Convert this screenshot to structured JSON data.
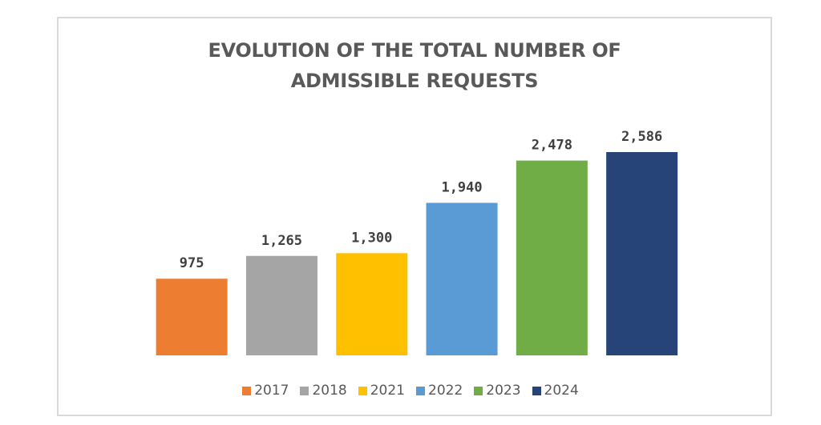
{
  "chart_data": {
    "type": "bar",
    "title": "EVOLUTION OF THE TOTAL NUMBER OF ADMISSIBLE REQUESTS",
    "title_lines": [
      "EVOLUTION OF THE TOTAL NUMBER OF",
      "ADMISSIBLE REQUESTS"
    ],
    "categories": [
      "2017",
      "2018",
      "2021",
      "2022",
      "2023",
      "2024"
    ],
    "values": [
      975,
      1265,
      1300,
      1940,
      2478,
      2586
    ],
    "data_labels": [
      "975",
      "1,265",
      "1,300",
      "1,940",
      "2,478",
      "2,586"
    ],
    "colors": [
      "#ed7d31",
      "#a5a5a5",
      "#ffc000",
      "#5b9bd5",
      "#70ad47",
      "#264478"
    ],
    "xlabel": "",
    "ylabel": "",
    "ylim": [
      0,
      2586
    ],
    "grid": false,
    "legend": {
      "position": "bottom",
      "entries": [
        "2017",
        "2018",
        "2021",
        "2022",
        "2023",
        "2024"
      ]
    }
  }
}
